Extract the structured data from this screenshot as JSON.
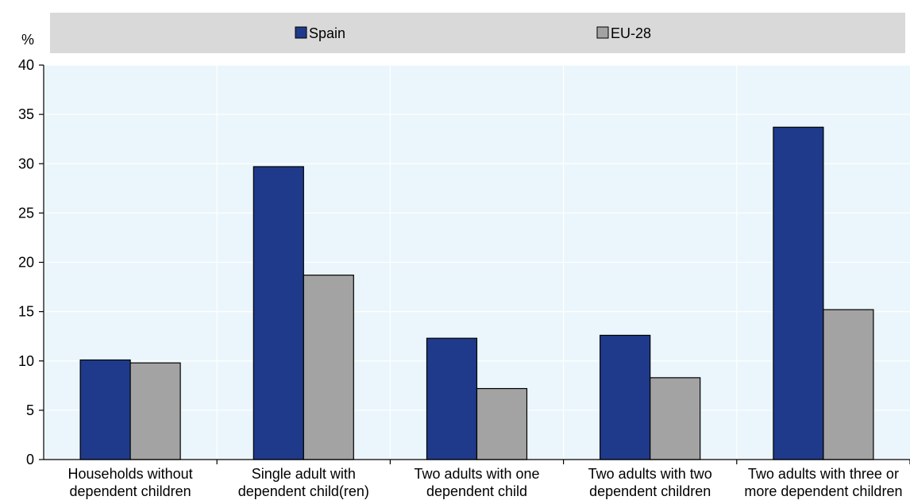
{
  "chart_data": {
    "type": "bar",
    "ylabel": "%",
    "ylim": [
      0,
      40
    ],
    "yticks": [
      0,
      5,
      10,
      15,
      20,
      25,
      30,
      35,
      40
    ],
    "grid": true,
    "legend_position": "top",
    "categories": [
      [
        "Households without",
        "dependent children"
      ],
      [
        "Single adult with",
        "dependent child(ren)"
      ],
      [
        "Two adults with one",
        "dependent child"
      ],
      [
        "Two adults with two",
        "dependent children"
      ],
      [
        "Two adults with three or",
        "more dependent children"
      ]
    ],
    "series": [
      {
        "name": "Spain",
        "color": "#1f3a8a",
        "values": [
          10.1,
          29.7,
          12.3,
          12.6,
          33.7
        ]
      },
      {
        "name": "EU-28",
        "color": "#a3a3a3",
        "values": [
          9.8,
          18.7,
          7.2,
          8.3,
          15.2
        ]
      }
    ],
    "colors": {
      "legend_band": "#d9d9d9",
      "plot_bg": "#eaf6fb",
      "grid": "#ffffff",
      "bar_stroke": "#000000"
    }
  }
}
